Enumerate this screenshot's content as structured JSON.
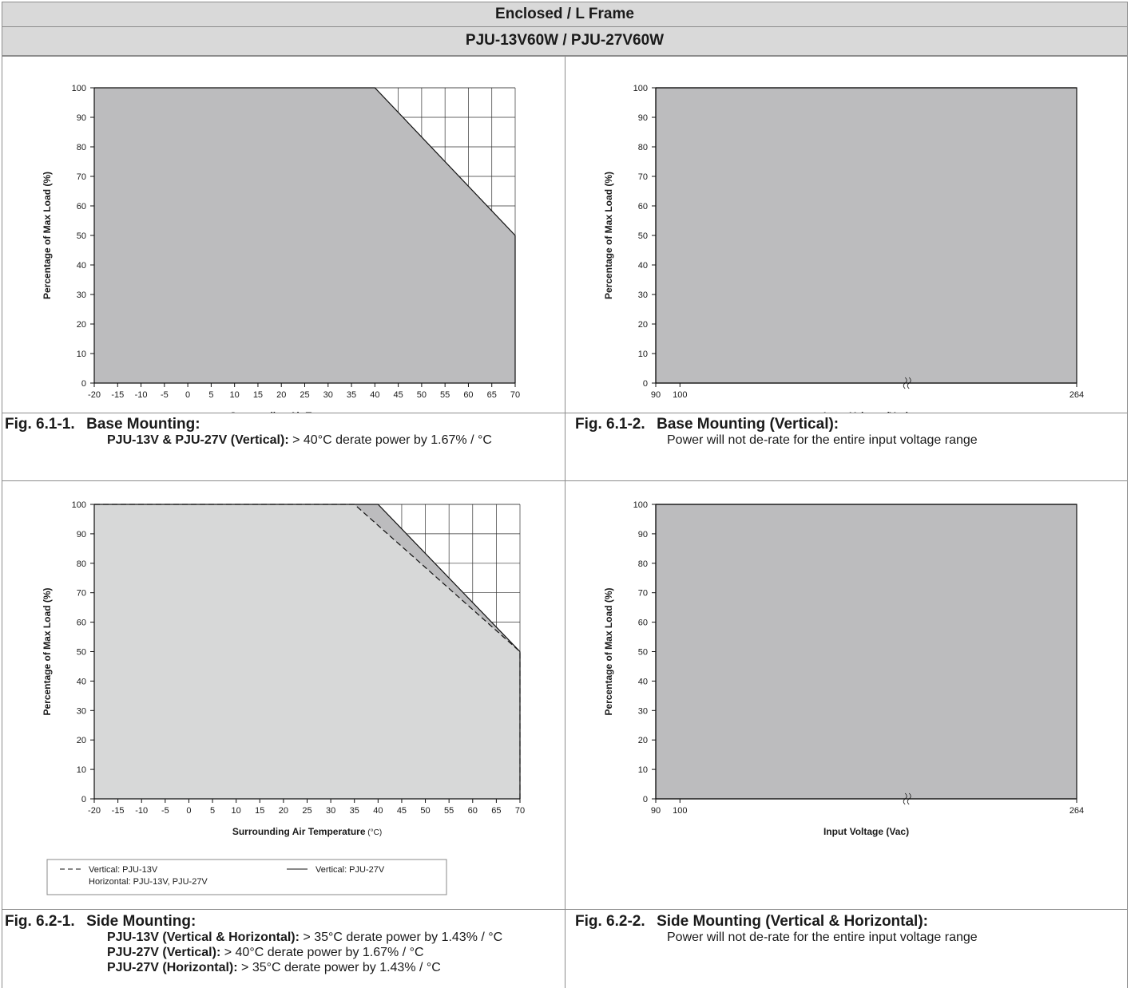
{
  "header": {
    "title": "Enclosed / L Frame",
    "model": "PJU-13V60W / PJU-27V60W"
  },
  "colors": {
    "grid": "#333333",
    "fill_dark": "#bcbcbe",
    "fill_light": "#d7d8d8",
    "border": "#8c8c8c"
  },
  "figures": [
    {
      "id": "fig-6-1-1",
      "number": "Fig. 6.1-1.",
      "heading": "Base Mounting:",
      "lines": [
        {
          "bold": "PJU-13V & PJU-27V (Vertical):",
          "text": " > 40°C derate power by 1.67% / °C"
        }
      ]
    },
    {
      "id": "fig-6-1-2",
      "number": "Fig. 6.1-2.",
      "heading": "Base Mounting (Vertical):",
      "lines": [
        {
          "bold": "",
          "text": "Power will not de-rate for the entire input voltage range"
        }
      ]
    },
    {
      "id": "fig-6-2-1",
      "number": "Fig. 6.2-1.",
      "heading": "Side Mounting:",
      "lines": [
        {
          "bold": "PJU-13V (Vertical & Horizontal):",
          "text": " > 35°C derate power by 1.43% / °C"
        },
        {
          "bold": "PJU-27V (Vertical):",
          "text": " > 40°C derate power by 1.67% / °C"
        },
        {
          "bold": "PJU-27V (Horizontal):",
          "text": " > 35°C derate power by 1.43% / °C"
        }
      ]
    },
    {
      "id": "fig-6-2-2",
      "number": "Fig. 6.2-2.",
      "heading": "Side Mounting (Vertical & Horizontal):",
      "lines": [
        {
          "bold": "",
          "text": "Power will not de-rate for the entire input voltage range"
        }
      ]
    }
  ],
  "chart_data": [
    {
      "id": "chart-6-1-1",
      "type": "area",
      "xlabel": "Surrounding Air Temperature",
      "xunit": "(°C)",
      "ylabel": "Percentage of Max Load (%)",
      "xlim": [
        -20,
        70
      ],
      "ylim": [
        0,
        100
      ],
      "xticks": [
        -20,
        -15,
        -10,
        -5,
        0,
        5,
        10,
        15,
        20,
        25,
        30,
        35,
        40,
        45,
        50,
        55,
        60,
        65,
        70
      ],
      "yticks": [
        0,
        10,
        20,
        30,
        40,
        50,
        60,
        70,
        80,
        90,
        100
      ],
      "grid": "derating-region-only",
      "series": [
        {
          "x": [
            -20,
            40,
            70
          ],
          "y": [
            100,
            100,
            50
          ],
          "fill": "dark",
          "line": "solid"
        }
      ]
    },
    {
      "id": "chart-6-1-2",
      "type": "area",
      "xlabel": "Input Voltage (Vac)",
      "ylabel": "Percentage of Max Load (%)",
      "xlim": [
        90,
        264
      ],
      "ylim": [
        0,
        100
      ],
      "xticks": [
        "90",
        "100",
        "264"
      ],
      "yticks": [
        0,
        10,
        20,
        30,
        40,
        50,
        60,
        70,
        80,
        90,
        100
      ],
      "axis_break": true,
      "series": [
        {
          "x": [
            90,
            264
          ],
          "y": [
            100,
            100
          ],
          "fill": "dark",
          "line": "solid"
        }
      ]
    },
    {
      "id": "chart-6-2-1",
      "type": "area",
      "xlabel": "Surrounding Air Temperature",
      "xunit": "(°C)",
      "ylabel": "Percentage of Max Load (%)",
      "xlim": [
        -20,
        70
      ],
      "ylim": [
        0,
        100
      ],
      "xticks": [
        -20,
        -15,
        -10,
        -5,
        0,
        5,
        10,
        15,
        20,
        25,
        30,
        35,
        40,
        45,
        50,
        55,
        60,
        65,
        70
      ],
      "yticks": [
        0,
        10,
        20,
        30,
        40,
        50,
        60,
        70,
        80,
        90,
        100
      ],
      "grid": "derating-region-only",
      "legend": {
        "placement": "bottom",
        "entries": [
          {
            "style": "dashed",
            "lines": [
              "Vertical: PJU-13V",
              "Horizontal: PJU-13V, PJU-27V"
            ]
          },
          {
            "style": "solid",
            "lines": [
              "Vertical: PJU-27V"
            ]
          }
        ]
      },
      "series": [
        {
          "x": [
            -20,
            40,
            70
          ],
          "y": [
            100,
            100,
            50
          ],
          "fill": "dark",
          "line": "solid"
        },
        {
          "x": [
            -20,
            35,
            70
          ],
          "y": [
            100,
            100,
            50
          ],
          "fill": "light",
          "line": "dashed"
        }
      ]
    },
    {
      "id": "chart-6-2-2",
      "type": "area",
      "xlabel": "Input Voltage (Vac)",
      "ylabel": "Percentage of Max Load (%)",
      "xlim": [
        90,
        264
      ],
      "ylim": [
        0,
        100
      ],
      "xticks": [
        "90",
        "100",
        "264"
      ],
      "yticks": [
        0,
        10,
        20,
        30,
        40,
        50,
        60,
        70,
        80,
        90,
        100
      ],
      "axis_break": true,
      "series": [
        {
          "x": [
            90,
            264
          ],
          "y": [
            100,
            100
          ],
          "fill": "dark",
          "line": "solid"
        }
      ]
    }
  ]
}
